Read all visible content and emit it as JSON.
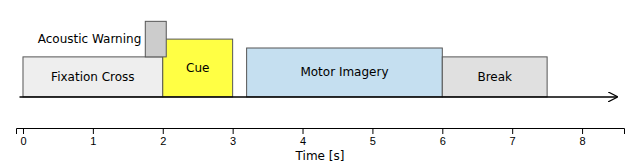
{
  "chart_data": {
    "type": "timeline",
    "xlabel": "Time [s]",
    "xlim": [
      -0.1,
      8.6
    ],
    "ylim": [
      -0.35,
      1.0
    ],
    "xticks": [
      0,
      1,
      2,
      3,
      4,
      5,
      6,
      7,
      8
    ],
    "tick_labels": "x",
    "categories": [
      "Fixation Cross",
      "Cue",
      "Motor Imagery",
      "Break"
    ],
    "start": [
      0,
      2,
      3.2,
      6
    ],
    "end": [
      2,
      3,
      6,
      7.5
    ],
    "ybot": [
      0.0,
      0.0,
      0.0,
      0.0
    ],
    "ytop": [
      0.45,
      0.65,
      0.55,
      0.45
    ],
    "colors": [
      "#eeeeee",
      "#ffff44",
      "#c5dff0",
      "#e0e0e0"
    ],
    "annotations": [
      {
        "text": "Acoustic Warning",
        "start": 1.75,
        "end": 2.05,
        "ybot": 0.45,
        "ytop": 0.85,
        "color": "#cccccc"
      }
    ],
    "arrow": {
      "x": [
        -0.05,
        8.5
      ],
      "y": 0.0
    }
  }
}
